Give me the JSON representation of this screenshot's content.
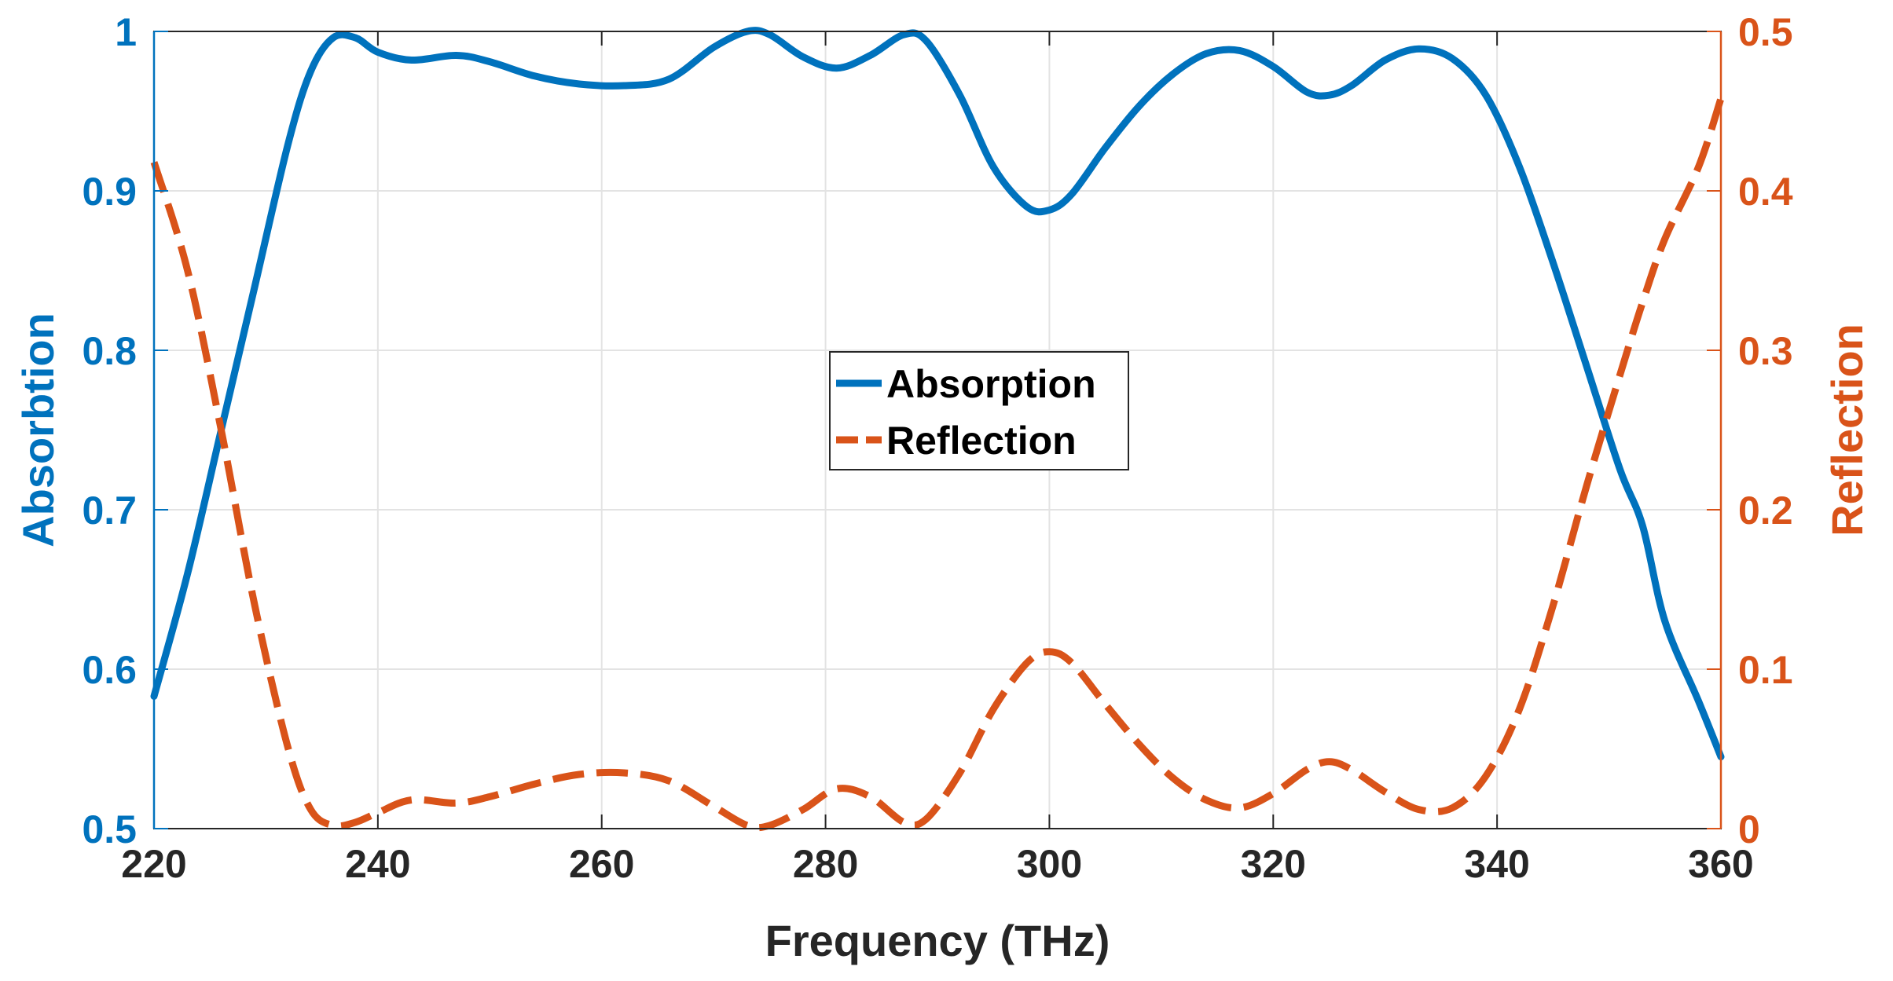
{
  "chart_data": {
    "type": "line",
    "xlabel": "Frequency (THz)",
    "ylabel_left": "Absorbtion",
    "ylabel_right": "Reflection",
    "xlim": [
      220,
      360
    ],
    "ylim_left": [
      0.5,
      1.0
    ],
    "ylim_right": [
      0,
      0.5
    ],
    "x_ticks": [
      220,
      240,
      260,
      280,
      300,
      320,
      340,
      360
    ],
    "x_tick_labels": [
      "220",
      "240",
      "260",
      "280",
      "300",
      "320",
      "340",
      "360"
    ],
    "y_left_ticks": [
      0.5,
      0.6,
      0.7,
      0.8,
      0.9,
      1.0
    ],
    "y_left_tick_labels": [
      "0.5",
      "0.6",
      "0.7",
      "0.8",
      "0.9",
      "1"
    ],
    "y_right_ticks": [
      0,
      0.1,
      0.2,
      0.3,
      0.4,
      0.5
    ],
    "y_right_tick_labels": [
      "0",
      "0.1",
      "0.2",
      "0.3",
      "0.4",
      "0.5"
    ],
    "grid": true,
    "legend_position": "center",
    "series": [
      {
        "name": "Absorption",
        "axis": "left",
        "color": "#0072BD",
        "style": "solid",
        "x": [
          220,
          223,
          226,
          229,
          232,
          234,
          236,
          238,
          240,
          243,
          247,
          250,
          254,
          258,
          262,
          266,
          270,
          273,
          275,
          278,
          281,
          284,
          287,
          289,
          292,
          295,
          298,
          300,
          302,
          305,
          308,
          311,
          314,
          317,
          320,
          323,
          325,
          327,
          330,
          333,
          336,
          339,
          342,
          345,
          348,
          351,
          353,
          355,
          358,
          360
        ],
        "y": [
          0.583,
          0.66,
          0.75,
          0.84,
          0.93,
          0.975,
          0.996,
          0.996,
          0.987,
          0.982,
          0.985,
          0.981,
          0.972,
          0.967,
          0.966,
          0.97,
          0.99,
          1.0,
          0.998,
          0.984,
          0.977,
          0.985,
          0.998,
          0.994,
          0.96,
          0.915,
          0.89,
          0.888,
          0.898,
          0.927,
          0.953,
          0.973,
          0.986,
          0.988,
          0.978,
          0.962,
          0.96,
          0.966,
          0.982,
          0.989,
          0.983,
          0.96,
          0.915,
          0.855,
          0.79,
          0.725,
          0.69,
          0.63,
          0.58,
          0.545
        ]
      },
      {
        "name": "Reflection",
        "axis": "right",
        "color": "#D95319",
        "style": "dashed",
        "x": [
          220,
          223,
          226,
          229,
          232,
          234,
          236,
          238,
          240,
          243,
          247,
          250,
          254,
          258,
          262,
          266,
          270,
          273,
          275,
          278,
          281,
          284,
          287,
          289,
          292,
          295,
          298,
          300,
          302,
          305,
          308,
          311,
          314,
          317,
          320,
          323,
          325,
          327,
          330,
          333,
          336,
          339,
          342,
          345,
          348,
          351,
          353,
          355,
          358,
          360
        ],
        "y": [
          0.418,
          0.35,
          0.25,
          0.14,
          0.05,
          0.012,
          0.002,
          0.004,
          0.01,
          0.018,
          0.016,
          0.02,
          0.028,
          0.034,
          0.035,
          0.03,
          0.014,
          0.002,
          0.002,
          0.012,
          0.025,
          0.02,
          0.004,
          0.006,
          0.035,
          0.075,
          0.104,
          0.111,
          0.104,
          0.078,
          0.053,
          0.032,
          0.018,
          0.013,
          0.022,
          0.037,
          0.042,
          0.037,
          0.023,
          0.012,
          0.013,
          0.033,
          0.075,
          0.14,
          0.215,
          0.285,
          0.33,
          0.37,
          0.415,
          0.458
        ]
      }
    ]
  }
}
